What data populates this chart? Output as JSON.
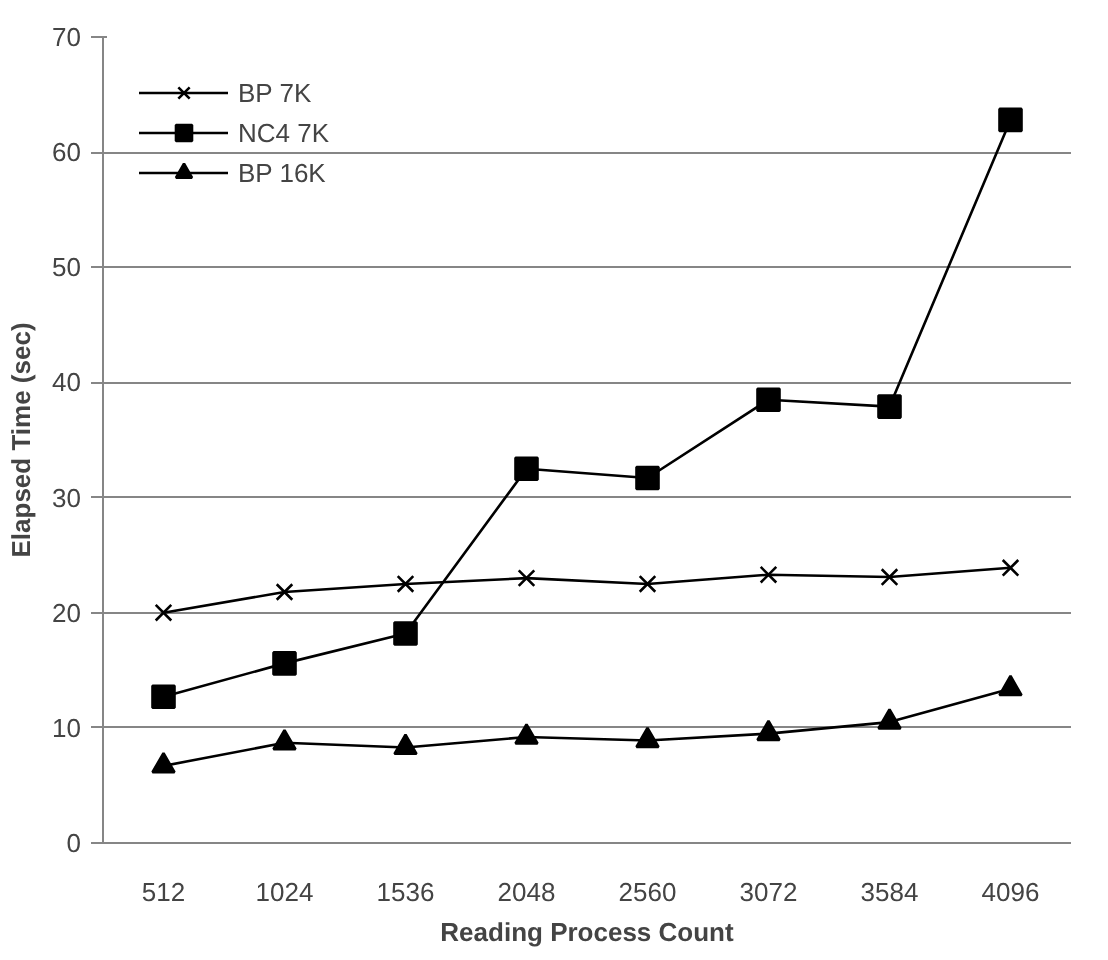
{
  "chart_data": {
    "type": "line",
    "xlabel": "Reading Process Count",
    "ylabel": "Elapsed Time (sec)",
    "categories": [
      "512",
      "1024",
      "1536",
      "2048",
      "2560",
      "3072",
      "3584",
      "4096"
    ],
    "series": [
      {
        "name": "BP 7K",
        "color": "#000000",
        "marker": "cross",
        "values": [
          20,
          21.8,
          22.5,
          23,
          22.5,
          23.3,
          23.1,
          23.9
        ]
      },
      {
        "name": "NC4 7K",
        "color": "#000000",
        "marker": "square",
        "values": [
          12.7,
          15.6,
          18.2,
          32.5,
          31.7,
          38.5,
          37.9,
          62.8
        ]
      },
      {
        "name": "BP 16K",
        "color": "#000000",
        "marker": "triangle",
        "values": [
          6.7,
          8.7,
          8.3,
          9.2,
          8.9,
          9.5,
          10.5,
          13.4
        ]
      }
    ],
    "ylim": [
      0,
      70
    ],
    "yticks": [
      0,
      10,
      20,
      30,
      40,
      50,
      60,
      70
    ],
    "grid": "y",
    "legend": "top left"
  }
}
